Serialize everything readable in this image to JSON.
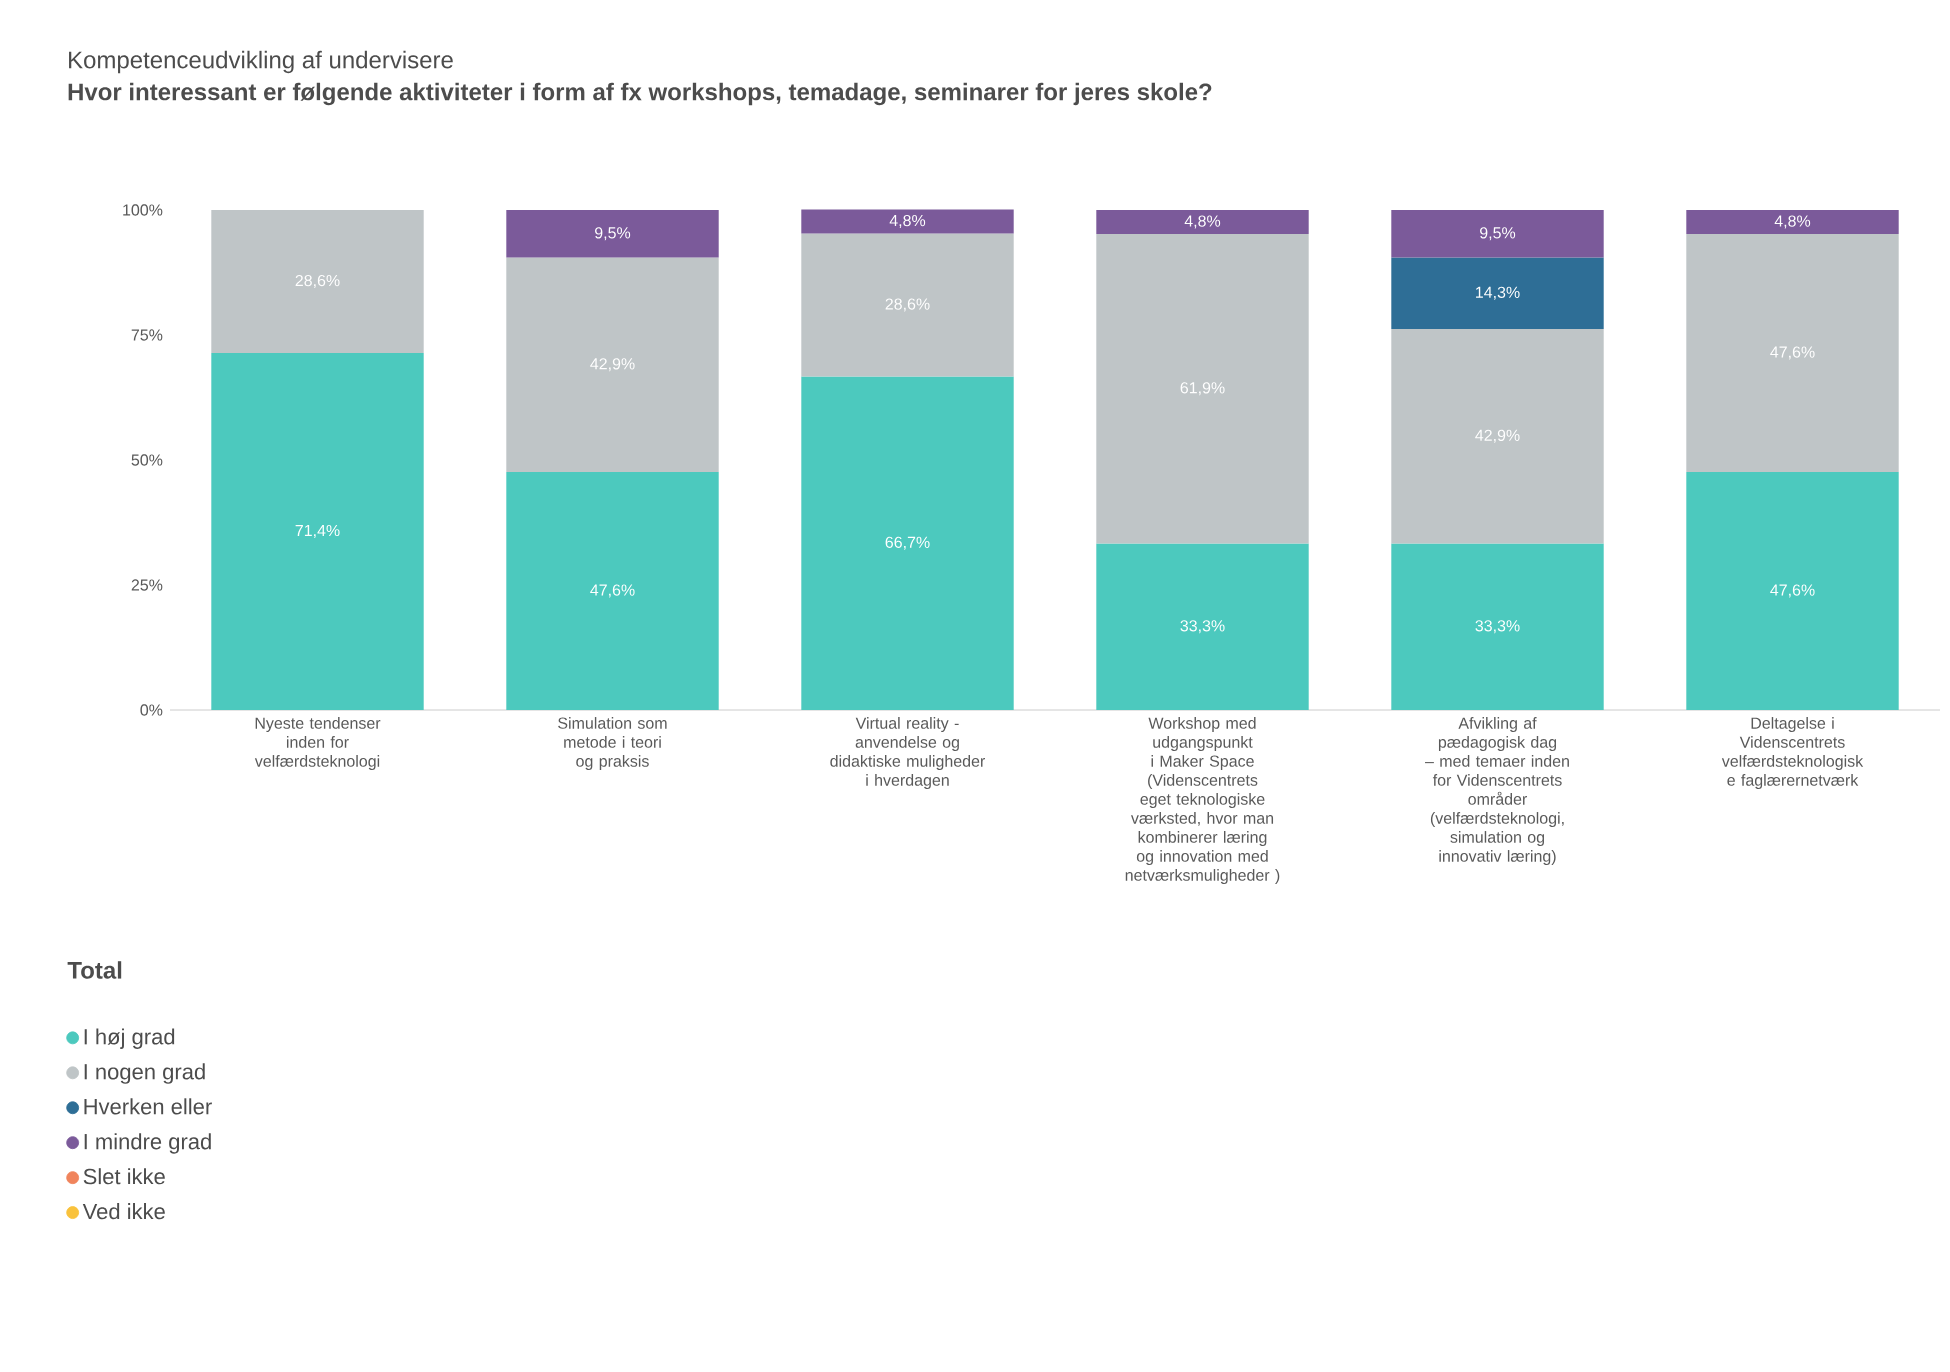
{
  "chart_data": {
    "type": "bar",
    "stacked": true,
    "title": "Kompetenceudvikling af undervisere",
    "subtitle": "Hvor interessant er følgende aktiviteter i form af fx workshops, temadage, seminarer for jeres skole?",
    "categories": [
      "Nyeste tendenser inden for velfærdsteknologi",
      "Simulation som metode i teori og praksis",
      "Virtual reality - anvendelse og didaktiske muligheder i hverdagen",
      "Workshop med udgangspunkt i Maker Space (Videnscentrets eget teknologiske værksted, hvor man kombinerer læring og innovation med netværksmuligheder )",
      "Afvikling af pædagogisk dag – med temaer inden for Videnscentrets områder (velfærdsteknologi, simulation og innovativ læring)",
      "Deltagelse i Videnscentrets velfærdsteknologisk e faglærernetværk"
    ],
    "ylim": [
      0,
      100
    ],
    "yticks": [
      {
        "value": 0,
        "label": "0%"
      },
      {
        "value": 25,
        "label": "25%"
      },
      {
        "value": 50,
        "label": "50%"
      },
      {
        "value": 75,
        "label": "75%"
      },
      {
        "value": 100,
        "label": "100%"
      }
    ],
    "legend_title": "Total",
    "legend": "bottom left",
    "grid": false,
    "series": [
      {
        "name": "I høj grad",
        "color": "#4cc9be",
        "values": [
          71.4,
          47.6,
          66.7,
          33.3,
          33.3,
          47.6
        ],
        "value_labels": [
          "71,4%",
          "47,6%",
          "66,7%",
          "33,3%",
          "33,3%",
          "47,6%"
        ]
      },
      {
        "name": "I nogen grad",
        "color": "#bfc5c7",
        "values": [
          28.6,
          42.9,
          28.6,
          61.9,
          42.9,
          47.6
        ],
        "value_labels": [
          "28,6%",
          "42,9%",
          "28,6%",
          "61,9%",
          "42,9%",
          "47,6%"
        ]
      },
      {
        "name": "Hverken eller",
        "color": "#2e6e96",
        "values": [
          null,
          null,
          null,
          null,
          14.3,
          null
        ],
        "value_labels": [
          null,
          null,
          null,
          null,
          "14,3%",
          null
        ]
      },
      {
        "name": "I mindre grad",
        "color": "#7b5a9a",
        "values": [
          null,
          9.5,
          4.8,
          4.8,
          9.5,
          4.8
        ],
        "value_labels": [
          null,
          "9,5%",
          "4,8%",
          "4,8%",
          "9,5%",
          "4,8%"
        ]
      },
      {
        "name": "Slet ikke",
        "color": "#f0845c",
        "values": [
          null,
          null,
          null,
          null,
          null,
          null
        ]
      },
      {
        "name": "Ved ikke",
        "color": "#f9c23c",
        "values": [
          null,
          null,
          null,
          null,
          null,
          null
        ]
      }
    ]
  }
}
